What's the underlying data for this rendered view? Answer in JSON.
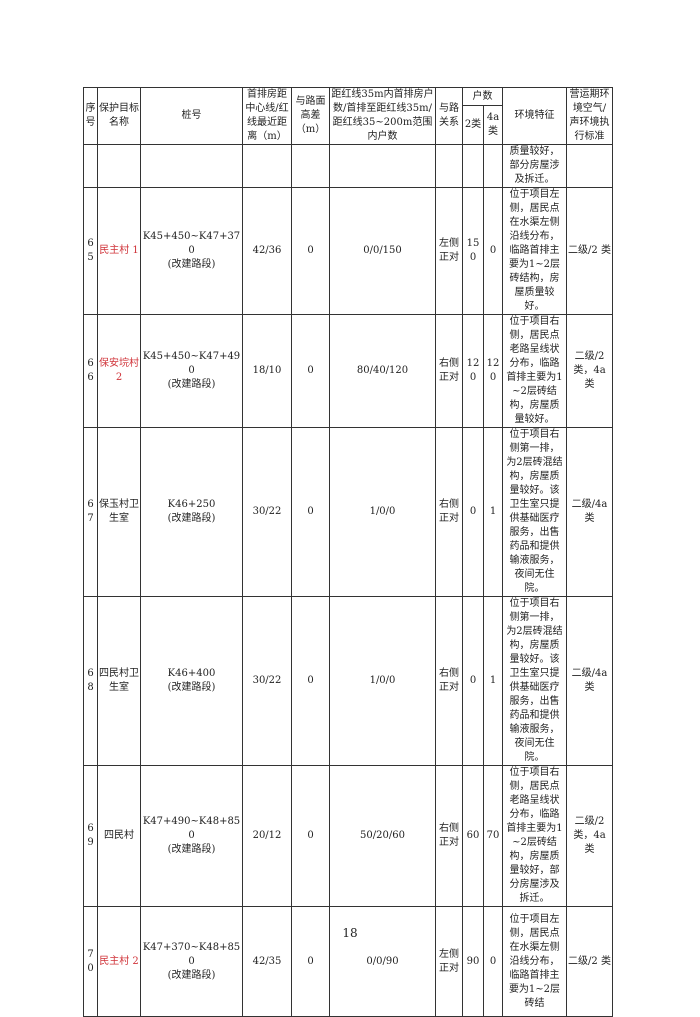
{
  "header": {
    "seq": "序号",
    "target": "保护目标名称",
    "station": "桩号",
    "distance": "首排房距中心线/红线最近距离（m）",
    "height": "与路面高差（m）",
    "households_range": "距红线35m内首排房户数/首排至距红线35m/距红线35~200m范围内户数",
    "relation": "与路关系",
    "households": "户数",
    "class2": "2类",
    "class4a": "4a类",
    "env": "环境特征",
    "standard": "营运期环境空气/声环境执行标准"
  },
  "continuation": {
    "env": "质量较好，部分房屋涉及拆迁。"
  },
  "rows": [
    {
      "seq": "65",
      "target": "民主村 1",
      "red": true,
      "station": "K45+450~K47+370",
      "station_note": "(改建路段)",
      "distance": "42/36",
      "height": "0",
      "households_range": "0/0/150",
      "relation": "左侧正对",
      "class2": "150",
      "class4a": "0",
      "env": "位于项目左侧，居民点在水渠左侧沿线分布，临路首排主要为1~2层砖结构，房屋质量较好。",
      "standard": "二级/2 类"
    },
    {
      "seq": "66",
      "target": "保安垸村 2",
      "red": true,
      "station": "K45+450~K47+490",
      "station_note": "(改建路段)",
      "distance": "18/10",
      "height": "0",
      "households_range": "80/40/120",
      "relation": "右侧正对",
      "class2": "120",
      "class4a": "120",
      "env": "位于项目右侧，居民点老路呈线状分布，临路首排主要为1~2层砖结构，房屋质量较好。",
      "standard": "二级/2 类，4a 类"
    },
    {
      "seq": "67",
      "target": "保玉村卫生室",
      "red": false,
      "station": "K46+250",
      "station_note": "(改建路段)",
      "distance": "30/22",
      "height": "0",
      "households_range": "1/0/0",
      "relation": "右侧正对",
      "class2": "0",
      "class4a": "1",
      "env": "位于项目右侧第一排，为2层砖混结构，房屋质量较好。该卫生室只提供基础医疗服务，出售药品和提供输液服务，夜间无住院。",
      "standard": "二级/4a 类"
    },
    {
      "seq": "68",
      "target": "四民村卫生室",
      "red": false,
      "station": "K46+400",
      "station_note": "(改建路段)",
      "distance": "30/22",
      "height": "0",
      "households_range": "1/0/0",
      "relation": "右侧正对",
      "class2": "0",
      "class4a": "1",
      "env": "位于项目右侧第一排，为2层砖混结构，房屋质量较好。该卫生室只提供基础医疗服务，出售药品和提供输液服务，夜间无住院。",
      "standard": "二级/4a 类"
    },
    {
      "seq": "69",
      "target": "四民村",
      "red": false,
      "station": "K47+490~K48+850",
      "station_note": "(改建路段)",
      "distance": "20/12",
      "height": "0",
      "households_range": "50/20/60",
      "relation": "右侧正对",
      "class2": "60",
      "class4a": "70",
      "env": "位于项目右侧，居民点老路呈线状分布，临路首排主要为1~2层砖结构，房屋质量较好，部分房屋涉及拆迁。",
      "standard": "二级/2 类，4a 类"
    },
    {
      "seq": "70",
      "target": "民主村 2",
      "red": true,
      "station": "K47+370~K48+850",
      "station_note": "(改建路段)",
      "distance": "42/35",
      "height": "0",
      "households_range": "0/0/90",
      "relation": "左侧正对",
      "class2": "90",
      "class4a": "0",
      "env": "位于项目左侧，居民点在水渠左侧沿线分布，临路首排主要为1~2层砖结",
      "standard": "二级/2 类"
    }
  ],
  "page_number": "18"
}
